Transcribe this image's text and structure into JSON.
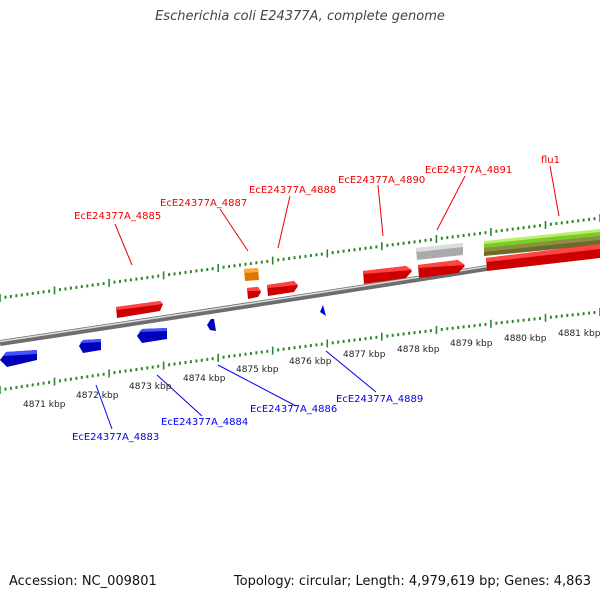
{
  "title": "Escherichia coli E24377A, complete genome",
  "footer": {
    "accession": "Accession: NC_009801",
    "summary": "Topology: circular; Length: 4,979,619 bp; Genes: 4,863"
  },
  "colors": {
    "forward_gene": "#ee0000",
    "reverse_gene": "#0000ee",
    "rna_gene": "#ff9900",
    "pseudo_gene": "#bbbbbb",
    "tick": "#2a8a2a",
    "backbone": "#888888",
    "green_band": "#99dd22"
  },
  "scale_labels": [
    "4871 kbp",
    "4872 kbp",
    "4873 kbp",
    "4874 kbp",
    "4875 kbp",
    "4876 kbp",
    "4877 kbp",
    "4878 kbp",
    "4879 kbp",
    "4880 kbp",
    "4881 kbp"
  ],
  "forward_gene_labels": [
    "EcE24377A_4885",
    "EcE24377A_4887",
    "EcE24377A_4888",
    "EcE24377A_4890",
    "EcE24377A_4891",
    "flu1"
  ],
  "reverse_gene_labels": [
    "EcE24377A_4883",
    "EcE24377A_4884",
    "EcE24377A_4886",
    "EcE24377A_4889"
  ]
}
